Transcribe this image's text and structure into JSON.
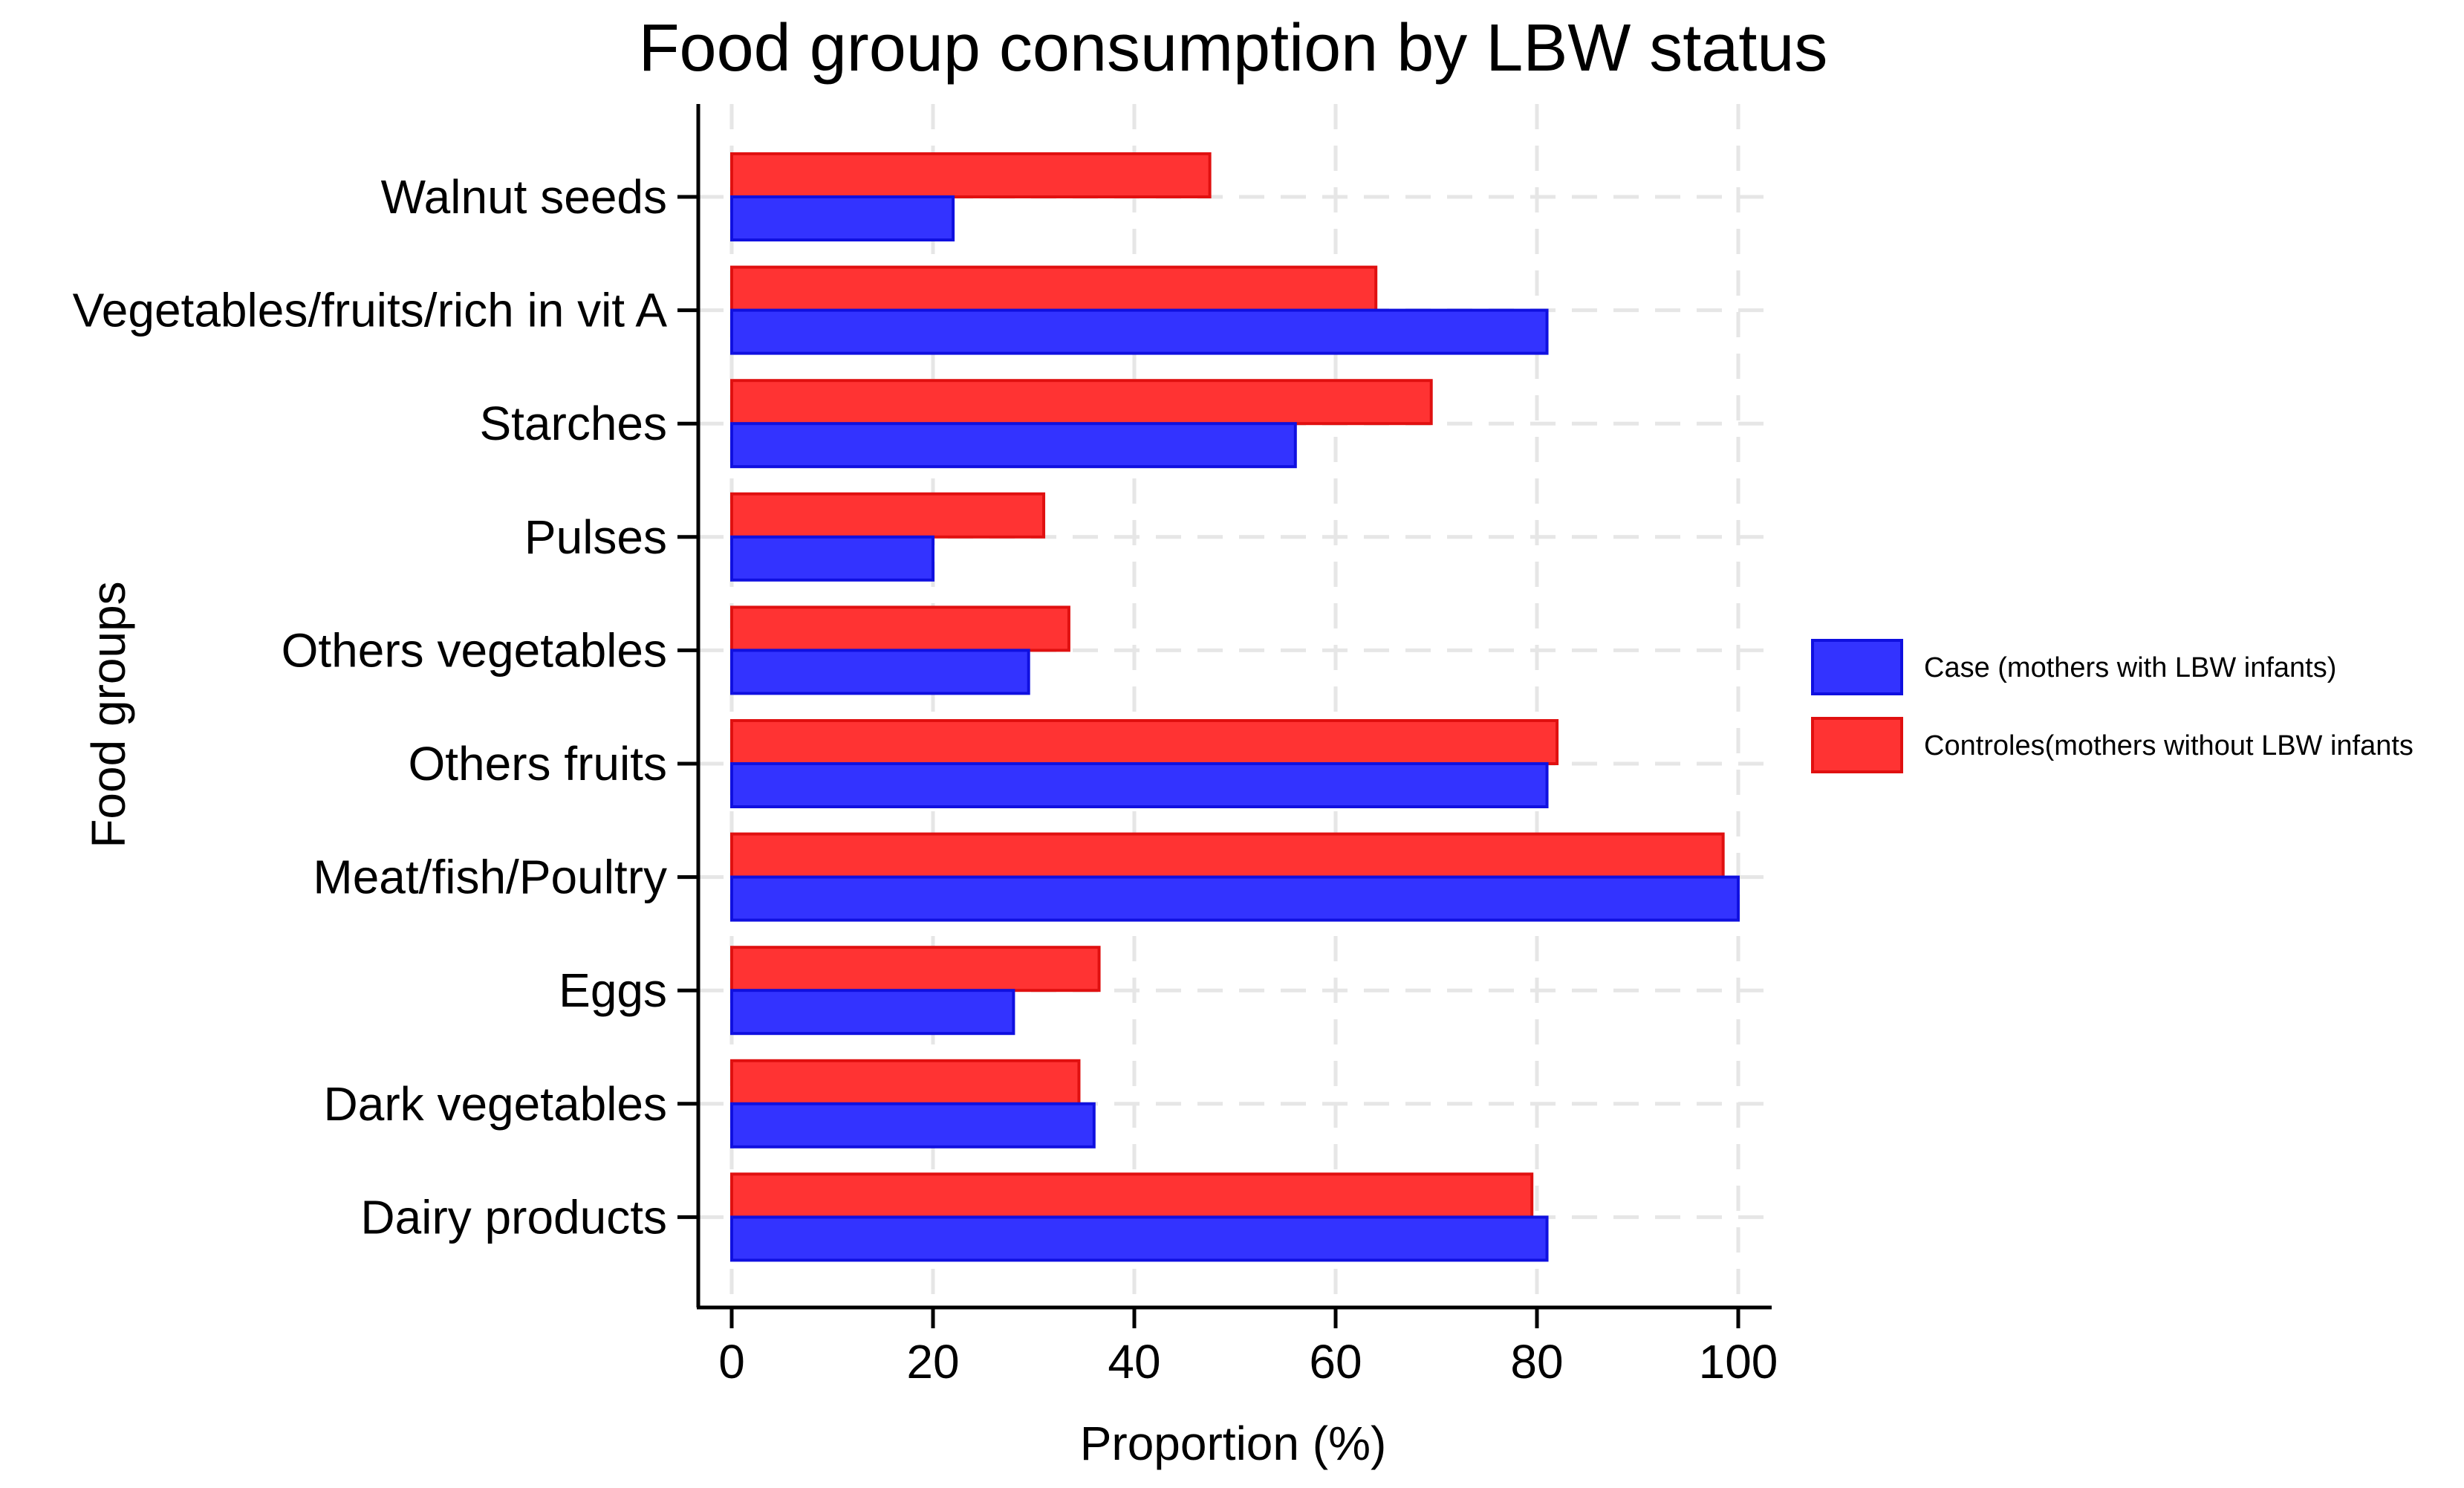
{
  "chart_data": {
    "type": "bar",
    "orientation": "horizontal",
    "title": "Food group consumption by LBW status",
    "xlabel": "Proportion (%)",
    "ylabel": "Food groups",
    "xlim": [
      0,
      100
    ],
    "xticks": [
      0,
      20,
      40,
      60,
      80,
      100
    ],
    "grid": true,
    "legend_position": "right",
    "categories": [
      "Walnut seeds",
      "Vegetables/fruits/rich in vit A",
      "Starches",
      "Pulses",
      "Others vegetables",
      "Others fruits",
      "Meat/fish/Poultry",
      "Eggs",
      "Dark vegetables",
      "Dairy products"
    ],
    "series": [
      {
        "name": "Case (mothers with LBW infants)",
        "color": "#3333ff",
        "stroke": "#1010e0",
        "values": [
          22,
          81,
          56,
          20,
          29.5,
          81,
          100,
          28,
          36,
          81
        ]
      },
      {
        "name": "Controles(mothers without LBW infants",
        "color": "#ff3333",
        "stroke": "#e01010",
        "values": [
          47.5,
          64,
          69.5,
          31,
          33.5,
          82,
          98.5,
          36.5,
          34.5,
          79.5
        ]
      }
    ]
  }
}
